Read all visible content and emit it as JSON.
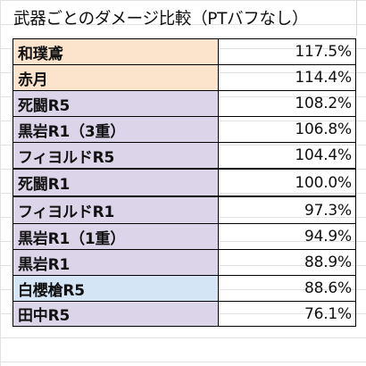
{
  "title": "武器ごとのダメージ比較（PTバフなし）",
  "colors": {
    "orange": "#fce4cc",
    "purple": "#dcd5ea",
    "blue": "#d4e5f5",
    "border": "#000000"
  },
  "rows": [
    {
      "name": "和璞鳶",
      "value": "117.5%",
      "color": "orange"
    },
    {
      "name": "赤月",
      "value": "114.4%",
      "color": "orange"
    },
    {
      "name": "死闘R5",
      "value": "108.2%",
      "color": "purple"
    },
    {
      "name": "黒岩R1（3重）",
      "value": "106.8%",
      "color": "purple"
    },
    {
      "name": "フィヨルドR5",
      "value": "104.4%",
      "color": "purple"
    },
    {
      "name": "死闘R1",
      "value": "100.0%",
      "color": "purple"
    },
    {
      "name": "フィヨルドR1",
      "value": "97.3%",
      "color": "purple"
    },
    {
      "name": "黒岩R1（1重）",
      "value": "94.9%",
      "color": "purple"
    },
    {
      "name": "黒岩R1",
      "value": "88.9%",
      "color": "purple"
    },
    {
      "name": "白櫻槍R5",
      "value": "88.6%",
      "color": "blue"
    },
    {
      "name": "田中R5",
      "value": "76.1%",
      "color": "purple"
    }
  ]
}
